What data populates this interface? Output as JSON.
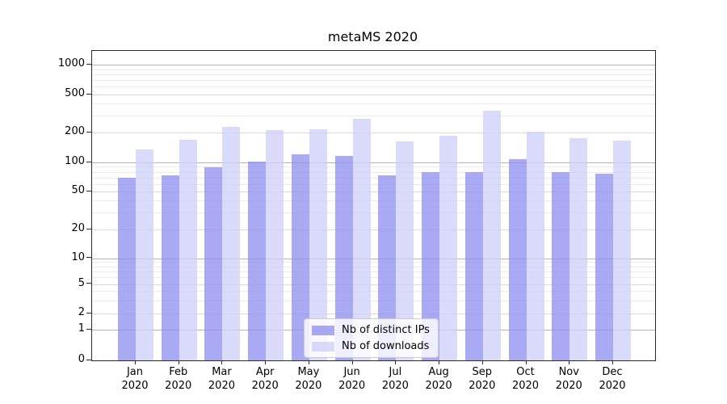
{
  "title": "metaMS 2020",
  "chart_data": {
    "type": "bar",
    "title": "metaMS 2020",
    "xlabel": "",
    "ylabel": "",
    "year": "2020",
    "months": [
      "Jan",
      "Feb",
      "Mar",
      "Apr",
      "May",
      "Jun",
      "Jul",
      "Aug",
      "Sep",
      "Oct",
      "Nov",
      "Dec"
    ],
    "categories": [
      "Jan 2020",
      "Feb 2020",
      "Mar 2020",
      "Apr 2020",
      "May 2020",
      "Jun 2020",
      "Jul 2020",
      "Aug 2020",
      "Sep 2020",
      "Oct 2020",
      "Nov 2020",
      "Dec 2020"
    ],
    "series": [
      {
        "name": "Nb of distinct IPs",
        "color": "rgba(140,140,240,0.75)",
        "values": [
          70,
          74,
          89,
          102,
          120,
          116,
          74,
          79,
          79,
          107,
          80,
          76
        ]
      },
      {
        "name": "Nb of downloads",
        "color": "rgba(205,205,250,0.75)",
        "values": [
          135,
          170,
          228,
          213,
          217,
          280,
          162,
          186,
          340,
          202,
          175,
          166
        ]
      }
    ],
    "y_axis": {
      "scale": "log-like",
      "ticks": [
        0,
        1,
        2,
        5,
        10,
        20,
        50,
        100,
        200,
        500,
        1000
      ],
      "ylim": [
        0,
        1380
      ],
      "grid": true
    },
    "legend_position": "lower center"
  }
}
